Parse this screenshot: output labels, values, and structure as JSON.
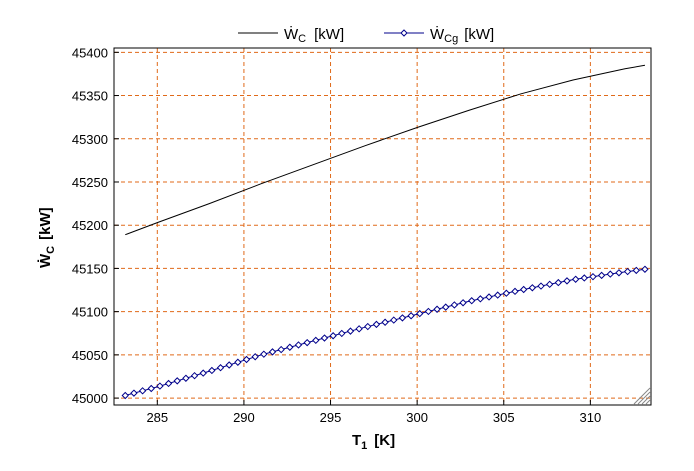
{
  "chart_data": {
    "type": "line",
    "xlabel": {
      "main": "T",
      "sub": "1",
      "unit": "[K]"
    },
    "ylabel": {
      "main": "Ẇ",
      "sub": "C",
      "unit": "[kW]"
    },
    "xlim": [
      282.5,
      313.5
    ],
    "ylim": [
      44992,
      45405
    ],
    "xticks": [
      285,
      290,
      295,
      300,
      305,
      310
    ],
    "yticks": [
      45000,
      45050,
      45100,
      45150,
      45200,
      45250,
      45300,
      45350,
      45400
    ],
    "grid": true,
    "legend_position": "top",
    "series": [
      {
        "name": {
          "main": "Ẇ",
          "sub": "C",
          "unit": "[kW]"
        },
        "color": "#000000",
        "marker": "none",
        "x": [
          283.15,
          285,
          288,
          291,
          294,
          297,
          300,
          303,
          306,
          309,
          312,
          313.15
        ],
        "y": [
          45189,
          45203,
          45225,
          45248,
          45270,
          45292,
          45313,
          45333,
          45352,
          45368,
          45381,
          45385
        ]
      },
      {
        "name": {
          "main": "Ẇ",
          "sub": "Cg",
          "unit": "[kW]"
        },
        "color": "#00008b",
        "marker": "diamond",
        "x": [
          283.15,
          285,
          288,
          291,
          294,
          297,
          300,
          303,
          306,
          309,
          312,
          313.15
        ],
        "y": [
          45003,
          45013,
          45031,
          45050,
          45066,
          45082,
          45097,
          45112,
          45125,
          45137,
          45146,
          45149
        ]
      }
    ]
  },
  "colors": {
    "grid": "#e06a1a",
    "frame": "#000000",
    "series_1": "#000000",
    "series_2": "#00008b"
  }
}
